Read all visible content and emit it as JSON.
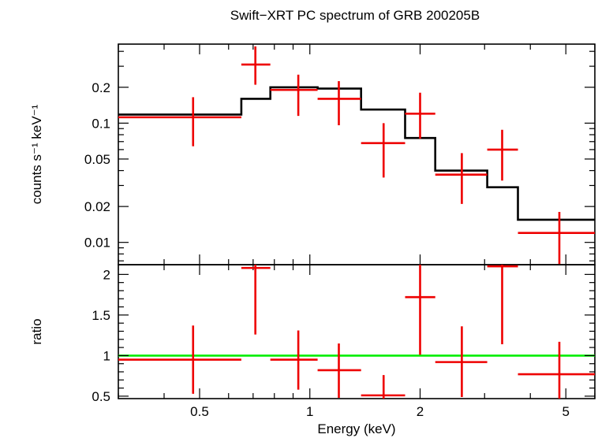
{
  "chart_data": {
    "title": "Swift−XRT PC spectrum of GRB 200205B",
    "xlabel": "Energy (keV)",
    "xscale": "log",
    "xlim": [
      0.3,
      6.0
    ],
    "x_ticks": [
      {
        "v": 0.5,
        "label": "0.5"
      },
      {
        "v": 1,
        "label": "1"
      },
      {
        "v": 2,
        "label": "2"
      },
      {
        "v": 5,
        "label": "5"
      }
    ],
    "top_panel": {
      "type": "step+errorbar",
      "ylabel": "counts s⁻¹ keV⁻¹",
      "yscale": "log",
      "ylim": [
        0.0065,
        0.46
      ],
      "y_ticks": [
        {
          "v": 0.01,
          "label": "0.01"
        },
        {
          "v": 0.02,
          "label": "0.02"
        },
        {
          "v": 0.05,
          "label": "0.05"
        },
        {
          "v": 0.1,
          "label": "0.1"
        },
        {
          "v": 0.2,
          "label": "0.2"
        }
      ],
      "data": [
        {
          "x_lo": 0.3,
          "x_hi": 0.65,
          "x": 0.48,
          "y": 0.112,
          "y_lo": 0.064,
          "y_hi": 0.165
        },
        {
          "x_lo": 0.65,
          "x_hi": 0.78,
          "x": 0.71,
          "y": 0.31,
          "y_lo": 0.21,
          "y_hi": 0.44
        },
        {
          "x_lo": 0.78,
          "x_hi": 1.05,
          "x": 0.93,
          "y": 0.19,
          "y_lo": 0.115,
          "y_hi": 0.255
        },
        {
          "x_lo": 1.05,
          "x_hi": 1.38,
          "x": 1.2,
          "y": 0.16,
          "y_lo": 0.096,
          "y_hi": 0.225
        },
        {
          "x_lo": 1.38,
          "x_hi": 1.82,
          "x": 1.59,
          "y": 0.068,
          "y_lo": 0.035,
          "y_hi": 0.1
        },
        {
          "x_lo": 1.82,
          "x_hi": 2.2,
          "x": 2.0,
          "y": 0.12,
          "y_lo": 0.074,
          "y_hi": 0.18
        },
        {
          "x_lo": 2.2,
          "x_hi": 3.05,
          "x": 2.6,
          "y": 0.037,
          "y_lo": 0.021,
          "y_hi": 0.056
        },
        {
          "x_lo": 3.05,
          "x_hi": 3.7,
          "x": 3.35,
          "y": 0.06,
          "y_lo": 0.033,
          "y_hi": 0.088
        },
        {
          "x_lo": 3.7,
          "x_hi": 6.0,
          "x": 4.8,
          "y": 0.012,
          "y_lo": 0.0065,
          "y_hi": 0.018
        }
      ],
      "model_steps": [
        {
          "x_lo": 0.3,
          "x_hi": 0.65,
          "y": 0.118
        },
        {
          "x_lo": 0.65,
          "x_hi": 0.78,
          "y": 0.16
        },
        {
          "x_lo": 0.78,
          "x_hi": 1.05,
          "y": 0.2
        },
        {
          "x_lo": 1.05,
          "x_hi": 1.38,
          "y": 0.195
        },
        {
          "x_lo": 1.38,
          "x_hi": 1.82,
          "y": 0.13
        },
        {
          "x_lo": 1.82,
          "x_hi": 2.2,
          "y": 0.075
        },
        {
          "x_lo": 2.2,
          "x_hi": 3.05,
          "y": 0.04
        },
        {
          "x_lo": 3.05,
          "x_hi": 3.7,
          "y": 0.029
        },
        {
          "x_lo": 3.7,
          "x_hi": 6.0,
          "y": 0.0155
        }
      ]
    },
    "bottom_panel": {
      "type": "errorbar",
      "ylabel": "ratio",
      "yscale": "linear",
      "ylim": [
        0.47,
        2.12
      ],
      "y_ticks": [
        {
          "v": 0.5,
          "label": "0.5"
        },
        {
          "v": 1,
          "label": "1"
        },
        {
          "v": 1.5,
          "label": "1.5"
        },
        {
          "v": 2,
          "label": "2"
        }
      ],
      "reference_line": 1.0,
      "data": [
        {
          "x_lo": 0.3,
          "x_hi": 0.65,
          "x": 0.48,
          "y": 0.95,
          "y_lo": 0.53,
          "y_hi": 1.37
        },
        {
          "x_lo": 0.65,
          "x_hi": 0.78,
          "x": 0.71,
          "y": 2.08,
          "y_lo": 1.26,
          "y_hi": 2.12
        },
        {
          "x_lo": 0.78,
          "x_hi": 1.05,
          "x": 0.93,
          "y": 0.95,
          "y_lo": 0.58,
          "y_hi": 1.31
        },
        {
          "x_lo": 1.05,
          "x_hi": 1.38,
          "x": 1.2,
          "y": 0.82,
          "y_lo": 0.48,
          "y_hi": 1.15
        },
        {
          "x_lo": 1.38,
          "x_hi": 1.82,
          "x": 1.59,
          "y": 0.51,
          "y_lo": 0.47,
          "y_hi": 0.76
        },
        {
          "x_lo": 1.82,
          "x_hi": 2.2,
          "x": 2.0,
          "y": 1.72,
          "y_lo": 1.01,
          "y_hi": 2.12
        },
        {
          "x_lo": 2.2,
          "x_hi": 3.05,
          "x": 2.6,
          "y": 0.92,
          "y_lo": 0.49,
          "y_hi": 1.36
        },
        {
          "x_lo": 3.05,
          "x_hi": 3.7,
          "x": 3.35,
          "y": 2.1,
          "y_lo": 1.14,
          "y_hi": 2.12
        },
        {
          "x_lo": 3.7,
          "x_hi": 6.0,
          "x": 4.8,
          "y": 0.77,
          "y_lo": 0.47,
          "y_hi": 1.17
        }
      ]
    },
    "colors": {
      "data": "#ee0000",
      "model": "#000000",
      "reference": "#00ee00",
      "axes": "#000000"
    }
  }
}
